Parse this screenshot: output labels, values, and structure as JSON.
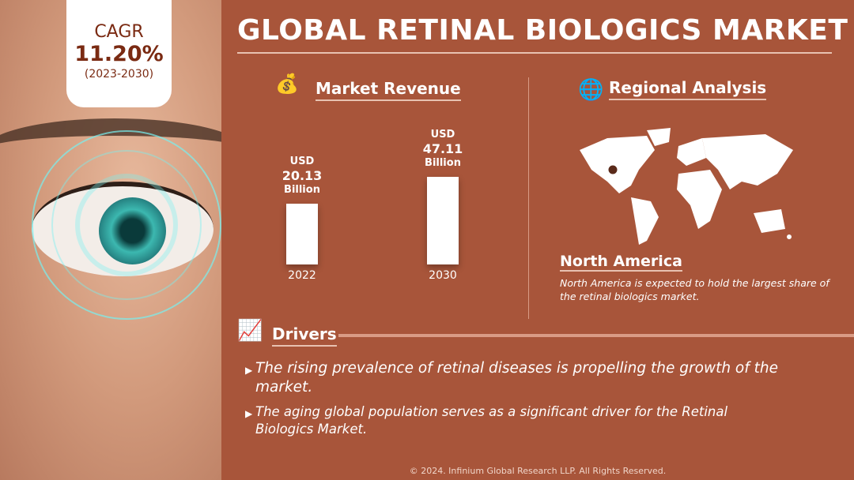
{
  "title": "GLOBAL RETINAL BIOLOGICS MARKET",
  "cagr": {
    "label": "CAGR",
    "value": "11.20%",
    "period": "(2023-2030)"
  },
  "revenue": {
    "heading": "Market Revenue",
    "icon": "money-bag-icon"
  },
  "chart_data": {
    "type": "bar",
    "categories": [
      "2022",
      "2030"
    ],
    "values": [
      20.13,
      47.11
    ],
    "unit": "USD Billion",
    "labels": [
      {
        "prefix": "USD",
        "value": "20.13",
        "suffix": "Billion"
      },
      {
        "prefix": "USD",
        "value": "47.11",
        "suffix": "Billion"
      }
    ]
  },
  "regional": {
    "heading": "Regional Analysis",
    "icon": "globe-icon",
    "region": "North America",
    "description": "North America is expected to hold the largest share of the retinal biologics market."
  },
  "drivers": {
    "heading": "Drivers",
    "icon": "drivers-chart-icon",
    "items": [
      "The rising prevalence of retinal diseases is propelling the growth of the market.",
      "The aging global population serves as a significant driver for the Retinal Biologics Market."
    ]
  },
  "footer": "© 2024. Infinium Global Research LLP. All Rights Reserved.",
  "colors": {
    "background": "#A8553A",
    "cagr_text": "#7A2A12",
    "accent_line": "#E8C2B1"
  }
}
